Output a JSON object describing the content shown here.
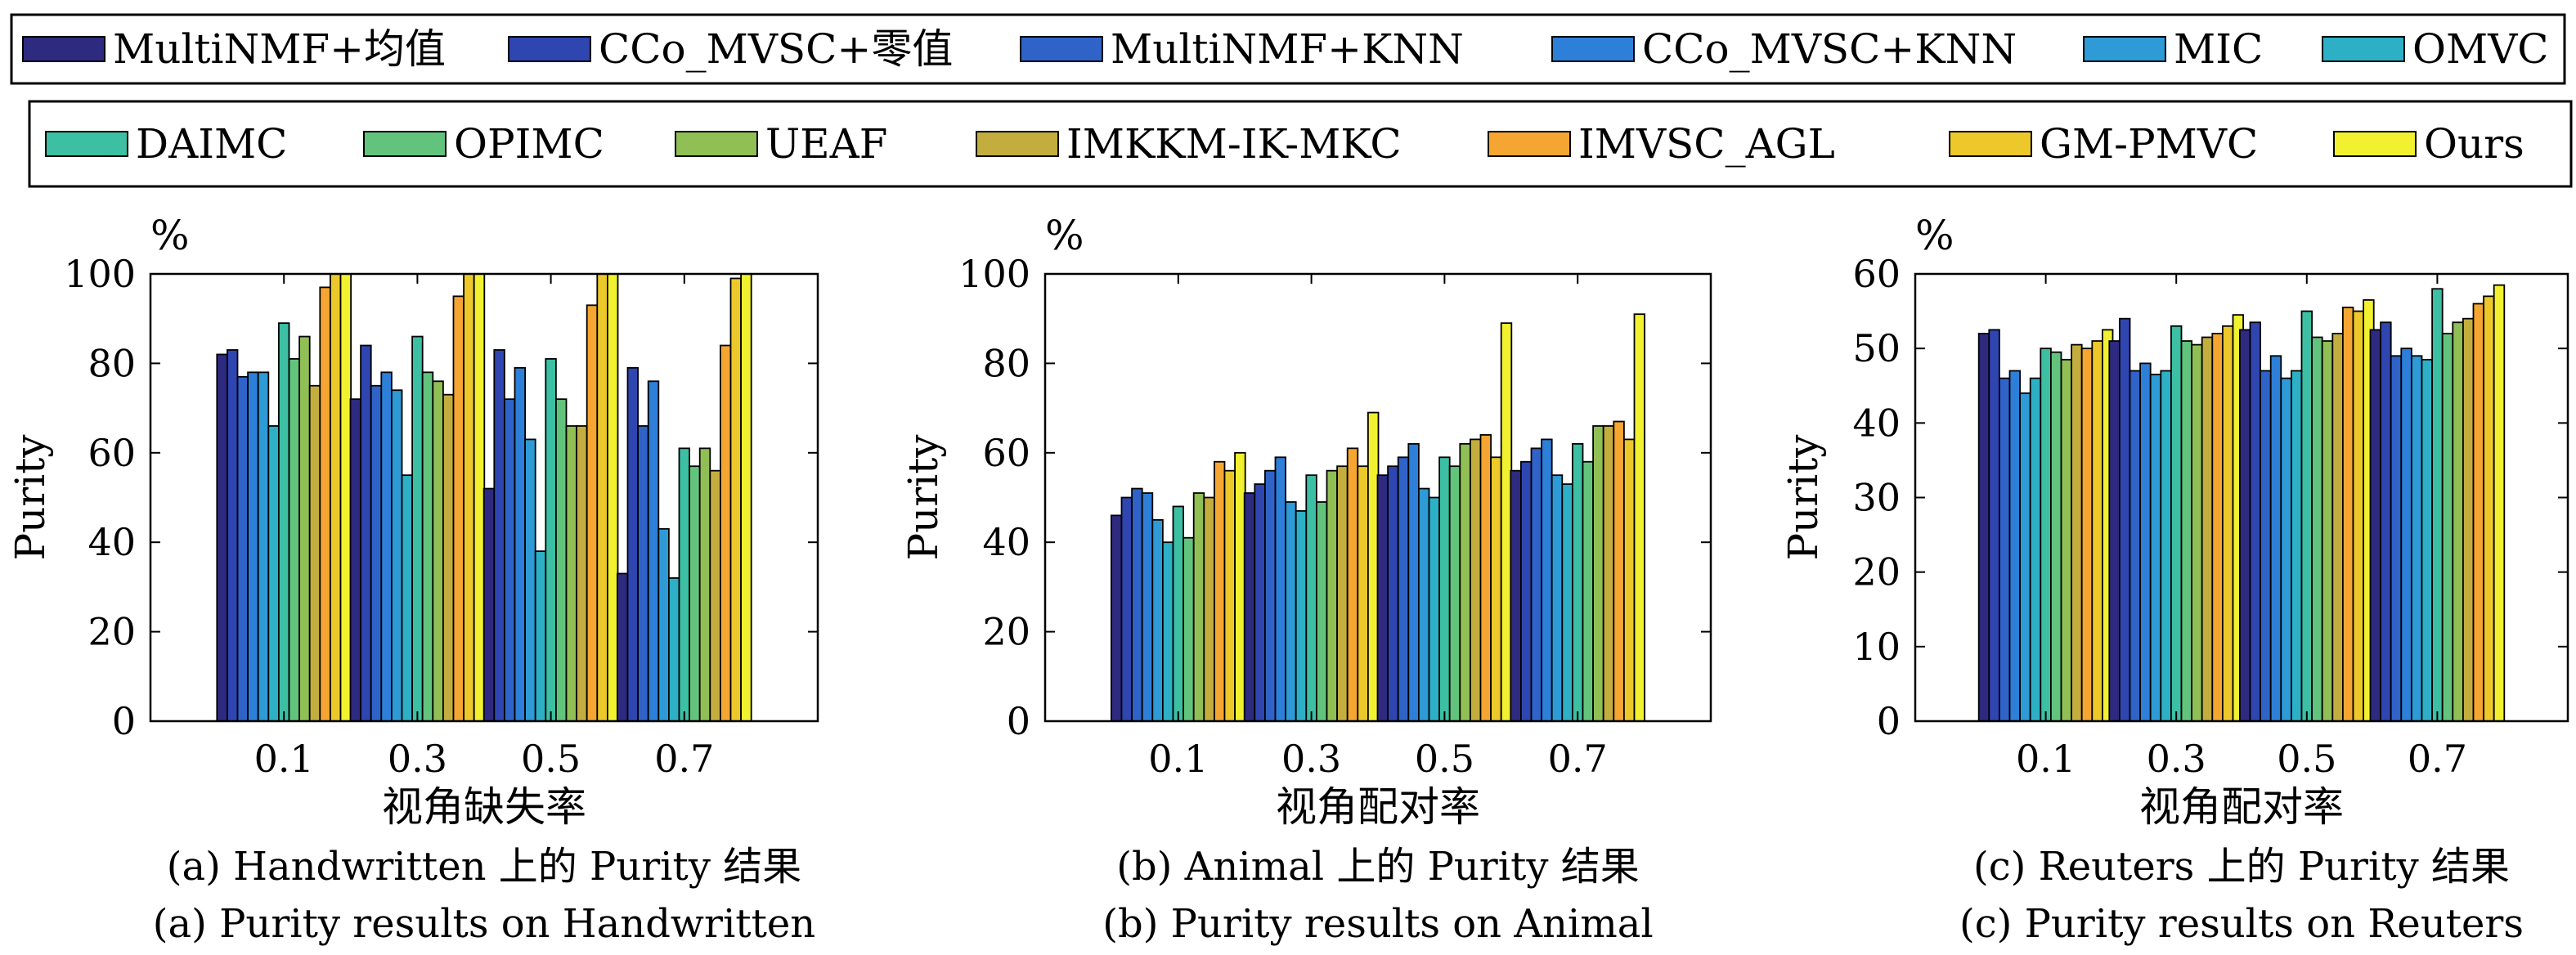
{
  "legend": {
    "row1": [
      "MultiNMF+均值",
      "CCo_MVSC+零值",
      "MultiNMF+KNN",
      "CCo_MVSC+KNN",
      "MIC",
      "OMVC"
    ],
    "row2": [
      "DAIMC",
      "OPIMC",
      "UEAF",
      "IMKKM-IK-MKC",
      "IMVSC_AGL",
      "GM-PMVC",
      "Ours"
    ]
  },
  "colors": [
    "#2e2a80",
    "#2f45b0",
    "#2f63c8",
    "#2d7fd8",
    "#2e9ad6",
    "#2db0c6",
    "#3cbfa3",
    "#62c47c",
    "#90bf55",
    "#c3ad3f",
    "#f5a531",
    "#ecc82a",
    "#f1f130"
  ],
  "chart_data": [
    {
      "type": "bar",
      "categories": [
        "0.1",
        "0.3",
        "0.5",
        "0.7"
      ],
      "xlabel": "视角缺失率",
      "ylabel": "Purity",
      "unit": "%",
      "ylim": [
        0,
        100
      ],
      "yticks": [
        0,
        20,
        40,
        60,
        80,
        100
      ],
      "grid": false,
      "legend_position": "top",
      "caption_zh": "(a) Handwritten 上的 Purity 结果",
      "caption_en": "(a) Purity results on Handwritten",
      "series": [
        {
          "name": "MultiNMF+均值",
          "values": [
            82,
            72,
            52,
            33
          ]
        },
        {
          "name": "CCo_MVSC+零值",
          "values": [
            83,
            84,
            83,
            79
          ]
        },
        {
          "name": "MultiNMF+KNN",
          "values": [
            77,
            75,
            72,
            66
          ]
        },
        {
          "name": "CCo_MVSC+KNN",
          "values": [
            78,
            78,
            79,
            76
          ]
        },
        {
          "name": "MIC",
          "values": [
            78,
            74,
            63,
            43
          ]
        },
        {
          "name": "OMVC",
          "values": [
            66,
            55,
            38,
            32
          ]
        },
        {
          "name": "DAIMC",
          "values": [
            89,
            86,
            81,
            61
          ]
        },
        {
          "name": "OPIMC",
          "values": [
            81,
            78,
            72,
            57
          ]
        },
        {
          "name": "UEAF",
          "values": [
            86,
            76,
            66,
            61
          ]
        },
        {
          "name": "IMKKM-IK-MKC",
          "values": [
            75,
            73,
            66,
            56
          ]
        },
        {
          "name": "IMVSC_AGL",
          "values": [
            97,
            95,
            93,
            84
          ]
        },
        {
          "name": "GM-PMVC",
          "values": [
            100,
            100,
            100,
            99
          ]
        },
        {
          "name": "Ours",
          "values": [
            100,
            100,
            100,
            100
          ]
        }
      ]
    },
    {
      "type": "bar",
      "categories": [
        "0.1",
        "0.3",
        "0.5",
        "0.7"
      ],
      "xlabel": "视角配对率",
      "ylabel": "Purity",
      "unit": "%",
      "ylim": [
        0,
        100
      ],
      "yticks": [
        0,
        20,
        40,
        60,
        80,
        100
      ],
      "grid": false,
      "legend_position": "top",
      "caption_zh": "(b) Animal 上的 Purity 结果",
      "caption_en": "(b) Purity results on Animal",
      "series": [
        {
          "name": "MultiNMF+均值",
          "values": [
            46,
            51,
            55,
            56
          ]
        },
        {
          "name": "CCo_MVSC+零值",
          "values": [
            50,
            53,
            57,
            58
          ]
        },
        {
          "name": "MultiNMF+KNN",
          "values": [
            52,
            56,
            59,
            61
          ]
        },
        {
          "name": "CCo_MVSC+KNN",
          "values": [
            51,
            59,
            62,
            63
          ]
        },
        {
          "name": "MIC",
          "values": [
            45,
            49,
            52,
            55
          ]
        },
        {
          "name": "OMVC",
          "values": [
            40,
            47,
            50,
            53
          ]
        },
        {
          "name": "DAIMC",
          "values": [
            48,
            55,
            59,
            62
          ]
        },
        {
          "name": "OPIMC",
          "values": [
            41,
            49,
            57,
            58
          ]
        },
        {
          "name": "UEAF",
          "values": [
            51,
            56,
            62,
            66
          ]
        },
        {
          "name": "IMKKM-IK-MKC",
          "values": [
            50,
            57,
            63,
            66
          ]
        },
        {
          "name": "IMVSC_AGL",
          "values": [
            58,
            61,
            64,
            67
          ]
        },
        {
          "name": "GM-PMVC",
          "values": [
            56,
            57,
            59,
            63
          ]
        },
        {
          "name": "Ours",
          "values": [
            60,
            69,
            89,
            91
          ]
        }
      ]
    },
    {
      "type": "bar",
      "categories": [
        "0.1",
        "0.3",
        "0.5",
        "0.7"
      ],
      "xlabel": "视角配对率",
      "ylabel": "Purity",
      "unit": "%",
      "ylim": [
        0,
        60
      ],
      "yticks": [
        0,
        10,
        20,
        30,
        40,
        50,
        60
      ],
      "grid": false,
      "legend_position": "top",
      "caption_zh": "(c) Reuters 上的 Purity 结果",
      "caption_en": "(c) Purity results on Reuters",
      "series": [
        {
          "name": "MultiNMF+均值",
          "values": [
            52,
            51,
            52.5,
            52.5
          ]
        },
        {
          "name": "CCo_MVSC+零值",
          "values": [
            52.5,
            54,
            53.5,
            53.5
          ]
        },
        {
          "name": "MultiNMF+KNN",
          "values": [
            46,
            47,
            47,
            49
          ]
        },
        {
          "name": "CCo_MVSC+KNN",
          "values": [
            47,
            48,
            49,
            50
          ]
        },
        {
          "name": "MIC",
          "values": [
            44,
            46.5,
            46,
            49
          ]
        },
        {
          "name": "OMVC",
          "values": [
            46,
            47,
            47,
            48.5
          ]
        },
        {
          "name": "DAIMC",
          "values": [
            50,
            53,
            55,
            58
          ]
        },
        {
          "name": "OPIMC",
          "values": [
            49.5,
            51,
            51.5,
            52
          ]
        },
        {
          "name": "UEAF",
          "values": [
            48.5,
            50.5,
            51,
            53.5
          ]
        },
        {
          "name": "IMKKM-IK-MKC",
          "values": [
            50.5,
            51.5,
            52,
            54
          ]
        },
        {
          "name": "IMVSC_AGL",
          "values": [
            50,
            52,
            55.5,
            56
          ]
        },
        {
          "name": "GM-PMVC",
          "values": [
            51,
            53,
            55,
            57
          ]
        },
        {
          "name": "Ours",
          "values": [
            52.5,
            54.5,
            56.5,
            58.5
          ]
        }
      ]
    }
  ]
}
